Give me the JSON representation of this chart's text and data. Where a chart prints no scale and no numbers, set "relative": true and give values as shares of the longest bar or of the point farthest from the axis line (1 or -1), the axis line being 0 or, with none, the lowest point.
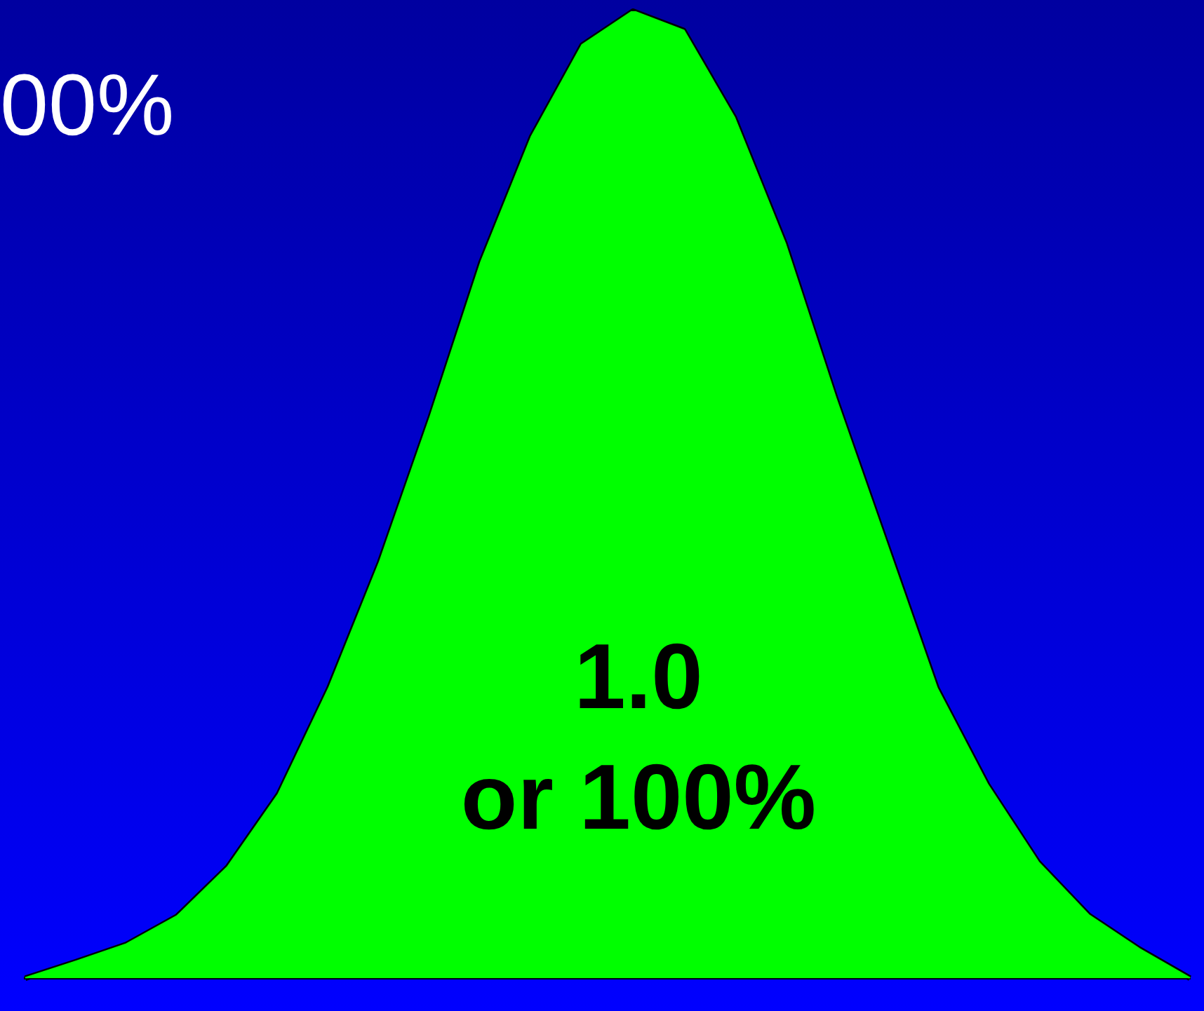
{
  "chart_data": {
    "type": "area",
    "relative": true,
    "categories": [
      null,
      null,
      null,
      null,
      null,
      null,
      null,
      null,
      null,
      null,
      null,
      null,
      null,
      null,
      null,
      null,
      null,
      null,
      null,
      null,
      null,
      null,
      null,
      null
    ],
    "series": [
      {
        "color": "#00ff00",
        "values": [
          0,
          0.017,
          0.035,
          0.064,
          0.115,
          0.19,
          0.3,
          0.43,
          0.58,
          0.74,
          0.87,
          0.965,
          1,
          0.98,
          0.89,
          0.76,
          0.6,
          0.45,
          0.3,
          0.2,
          0.12,
          0.065,
          0.03,
          0
        ]
      }
    ],
    "annotations": [
      "00%",
      "1.0\nor 100%"
    ]
  }
}
